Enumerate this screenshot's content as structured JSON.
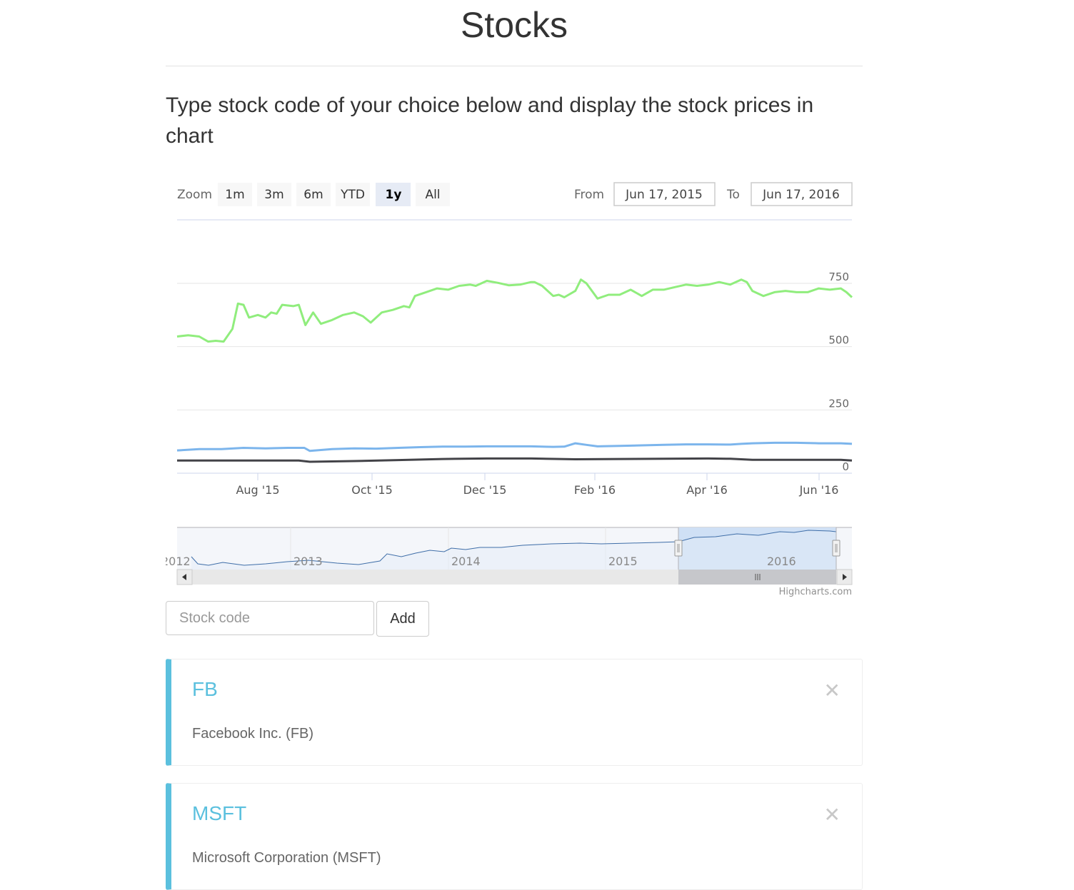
{
  "page": {
    "title": "Stocks",
    "lead": "Type stock code of your choice below and display the stock prices in chart"
  },
  "range_selector": {
    "zoom_label": "Zoom",
    "buttons": [
      "1m",
      "3m",
      "6m",
      "YTD",
      "1y",
      "All"
    ],
    "selected": "1y",
    "from_label": "From",
    "from_value": "Jun 17, 2015",
    "to_label": "To",
    "to_value": "Jun 17, 2016"
  },
  "chart_data": {
    "type": "line",
    "x_tick_labels": [
      "Aug '15",
      "Oct '15",
      "Dec '15",
      "Feb '16",
      "Apr '16",
      "Jun '16"
    ],
    "y_tick_labels": [
      "0",
      "250",
      "500",
      "750"
    ],
    "ylim": [
      0,
      750
    ],
    "series": [
      {
        "color": "#90ed7d",
        "points": [
          [
            0,
            540
          ],
          [
            1,
            545
          ],
          [
            2,
            540
          ],
          [
            2.8,
            520
          ],
          [
            3.5,
            523
          ],
          [
            4.2,
            520
          ],
          [
            5,
            570
          ],
          [
            5.5,
            670
          ],
          [
            6,
            665
          ],
          [
            6.5,
            615
          ],
          [
            7.3,
            625
          ],
          [
            8,
            615
          ],
          [
            8.5,
            635
          ],
          [
            9,
            630
          ],
          [
            9.5,
            665
          ],
          [
            10.5,
            660
          ],
          [
            11,
            665
          ],
          [
            11.6,
            585
          ],
          [
            12.3,
            635
          ],
          [
            13,
            590
          ],
          [
            14,
            605
          ],
          [
            15,
            625
          ],
          [
            16,
            635
          ],
          [
            16.8,
            620
          ],
          [
            17.5,
            595
          ],
          [
            18.5,
            635
          ],
          [
            19.5,
            645
          ],
          [
            20.5,
            660
          ],
          [
            21,
            655
          ],
          [
            21.5,
            700
          ],
          [
            22.5,
            715
          ],
          [
            23.5,
            730
          ],
          [
            24.5,
            725
          ],
          [
            25.5,
            740
          ],
          [
            26.5,
            745
          ],
          [
            27,
            740
          ],
          [
            28,
            760
          ],
          [
            29,
            752
          ],
          [
            30,
            742
          ],
          [
            31,
            745
          ],
          [
            32,
            755
          ],
          [
            32.3,
            755
          ],
          [
            33,
            740
          ],
          [
            34,
            700
          ],
          [
            34.5,
            705
          ],
          [
            35,
            695
          ],
          [
            36,
            720
          ],
          [
            36.5,
            765
          ],
          [
            37,
            750
          ],
          [
            38,
            690
          ],
          [
            39,
            705
          ],
          [
            40,
            705
          ],
          [
            41,
            725
          ],
          [
            42,
            700
          ],
          [
            43,
            725
          ],
          [
            44,
            725
          ],
          [
            45,
            735
          ],
          [
            46,
            745
          ],
          [
            47,
            740
          ],
          [
            48,
            745
          ],
          [
            49,
            755
          ],
          [
            50,
            745
          ],
          [
            51,
            765
          ],
          [
            51.5,
            755
          ],
          [
            52,
            720
          ],
          [
            53,
            700
          ],
          [
            54,
            715
          ],
          [
            55,
            720
          ],
          [
            56,
            715
          ],
          [
            57,
            715
          ],
          [
            58,
            730
          ],
          [
            59,
            725
          ],
          [
            60,
            730
          ],
          [
            60.5,
            715
          ],
          [
            61,
            695
          ]
        ]
      },
      {
        "color": "#7cb5ec",
        "points": [
          [
            0,
            90
          ],
          [
            2,
            95
          ],
          [
            4,
            95
          ],
          [
            6,
            100
          ],
          [
            8,
            98
          ],
          [
            10,
            100
          ],
          [
            11.5,
            100
          ],
          [
            12,
            88
          ],
          [
            14,
            95
          ],
          [
            16,
            98
          ],
          [
            18,
            97
          ],
          [
            20,
            100
          ],
          [
            22,
            103
          ],
          [
            24,
            105
          ],
          [
            26,
            105
          ],
          [
            28,
            106
          ],
          [
            30,
            106
          ],
          [
            32,
            106
          ],
          [
            34,
            104
          ],
          [
            35,
            105
          ],
          [
            36,
            118
          ],
          [
            37,
            112
          ],
          [
            38,
            106
          ],
          [
            40,
            108
          ],
          [
            42,
            110
          ],
          [
            44,
            112
          ],
          [
            46,
            114
          ],
          [
            48,
            114
          ],
          [
            50,
            113
          ],
          [
            51,
            116
          ],
          [
            52,
            118
          ],
          [
            54,
            120
          ],
          [
            56,
            120
          ],
          [
            58,
            118
          ],
          [
            60,
            118
          ],
          [
            61,
            116
          ]
        ]
      },
      {
        "color": "#434348",
        "points": [
          [
            0,
            50
          ],
          [
            4,
            50
          ],
          [
            8,
            50
          ],
          [
            11,
            50
          ],
          [
            12,
            45
          ],
          [
            16,
            48
          ],
          [
            20,
            52
          ],
          [
            24,
            56
          ],
          [
            28,
            58
          ],
          [
            32,
            58
          ],
          [
            36,
            55
          ],
          [
            40,
            56
          ],
          [
            44,
            57
          ],
          [
            48,
            58
          ],
          [
            50,
            57
          ],
          [
            52,
            53
          ],
          [
            56,
            53
          ],
          [
            60,
            53
          ],
          [
            61,
            50
          ]
        ]
      }
    ]
  },
  "navigator": {
    "year_labels": [
      "2012",
      "2013",
      "2014",
      "2015",
      "2016"
    ]
  },
  "credits": "Highcharts.com",
  "add_form": {
    "placeholder": "Stock code",
    "button": "Add"
  },
  "stocks": [
    {
      "code": "FB",
      "name": "Facebook Inc. (FB)"
    },
    {
      "code": "MSFT",
      "name": "Microsoft Corporation (MSFT)"
    }
  ],
  "close_icon": "close-icon",
  "accent": "#5bc0de"
}
